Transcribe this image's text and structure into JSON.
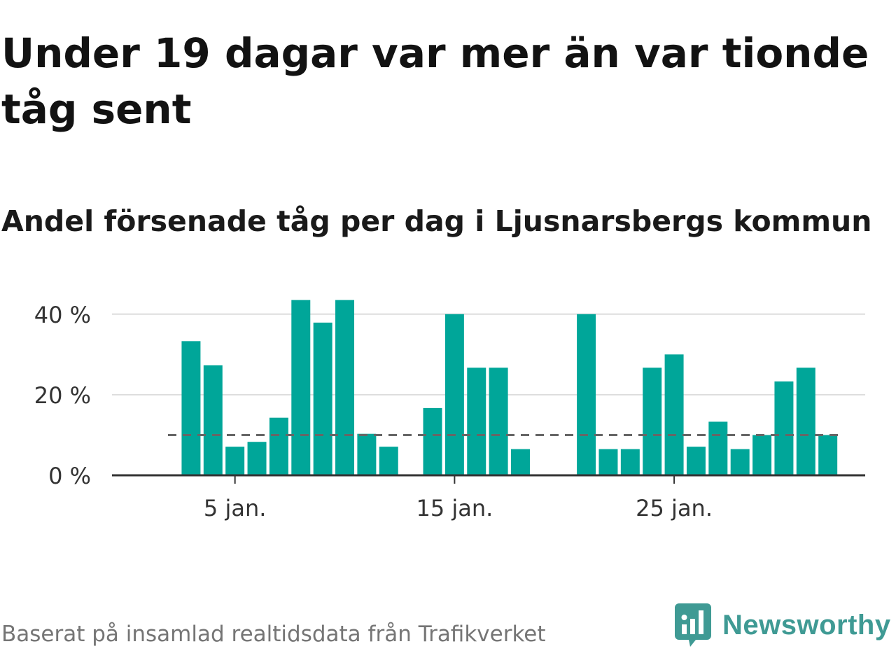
{
  "header": {
    "title": "Under 19 dagar var mer än var tionde tåg sent",
    "subtitle": "Andel försenade tåg per dag i Ljusnarsbergs kommun"
  },
  "footer": {
    "source": "Baserat på insamlad realtidsdata från Trafikverket",
    "brand": "Newsworthy"
  },
  "colors": {
    "bar": "#00a699",
    "reference_line": "#666666",
    "grid": "#dddddd",
    "axis": "#333333",
    "brand": "#3f9a94"
  },
  "icons": {
    "brand_logo": "bar-chart-speech-bubble-icon"
  },
  "chart_data": {
    "type": "bar",
    "x_type": "day_of_january",
    "x": [
      3,
      4,
      5,
      6,
      7,
      8,
      9,
      10,
      11,
      12,
      14,
      15,
      16,
      17,
      18,
      21,
      22,
      23,
      24,
      25,
      26,
      27,
      28,
      29,
      30,
      31,
      32
    ],
    "values": [
      33.3,
      27.3,
      7.1,
      8.3,
      14.3,
      43.5,
      37.9,
      43.5,
      10.3,
      7.1,
      16.7,
      40.0,
      26.7,
      26.7,
      6.5,
      40.0,
      6.5,
      6.5,
      26.7,
      30.0,
      7.1,
      13.3,
      6.5,
      10.0,
      23.3,
      26.7,
      10.0
    ],
    "x_ticks": [
      {
        "value": 5,
        "label": "5 jan."
      },
      {
        "value": 15,
        "label": "15 jan."
      },
      {
        "value": 25,
        "label": "25 jan."
      }
    ],
    "y_ticks": [
      {
        "value": 0,
        "label": "0 %"
      },
      {
        "value": 20,
        "label": "20 %"
      },
      {
        "value": 40,
        "label": "40 %"
      }
    ],
    "ylim": [
      0,
      45
    ],
    "xlim": [
      -0.6,
      33.7
    ],
    "reference_line": {
      "value": 10,
      "style": "dashed"
    },
    "grid": "horizontal"
  }
}
